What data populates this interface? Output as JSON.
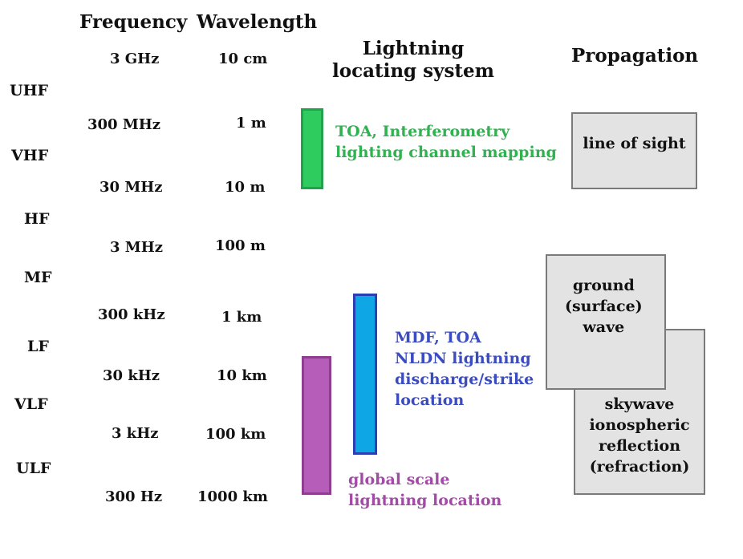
{
  "headers": {
    "frequency": "Frequency",
    "wavelength": "Wavelength",
    "lightning": "Lightning\nlocating system",
    "propagation": "Propagation"
  },
  "bands": [
    "UHF",
    "VHF",
    "HF",
    "MF",
    "LF",
    "VLF",
    "ULF"
  ],
  "frequencies": [
    "3 GHz",
    "300 MHz",
    "30 MHz",
    "3 MHz",
    "300 kHz",
    "30 kHz",
    "3 kHz",
    "300 Hz"
  ],
  "wavelengths": [
    "10 cm",
    "1 m",
    "10 m",
    "100 m",
    "1 km",
    "10 km",
    "100 km",
    "1000 km"
  ],
  "systems": [
    {
      "label": "TOA, Interferometry\nlighting channel mapping",
      "color": "#2ecc5e",
      "border": "#22a24a",
      "range": [
        "300 MHz",
        "30 MHz"
      ]
    },
    {
      "label": "MDF, TOA\nNLDN lightning\ndischarge/strike\nlocation",
      "color": "#0fa6e6",
      "border": "#2a3fb0",
      "range": [
        "300 kHz",
        "3 kHz"
      ],
      "text_color": "#3b4cc0"
    },
    {
      "label": "global scale\nlightning location",
      "color": "#b65cb9",
      "border": "#8e3d90",
      "range": [
        "30 kHz",
        "300 Hz"
      ]
    }
  ],
  "propagation": {
    "line_of_sight": "line of sight",
    "ground_wave": "ground\n(surface)\nwave",
    "skywave": "skywave\nionospheric\nreflection\n(refraction)"
  }
}
